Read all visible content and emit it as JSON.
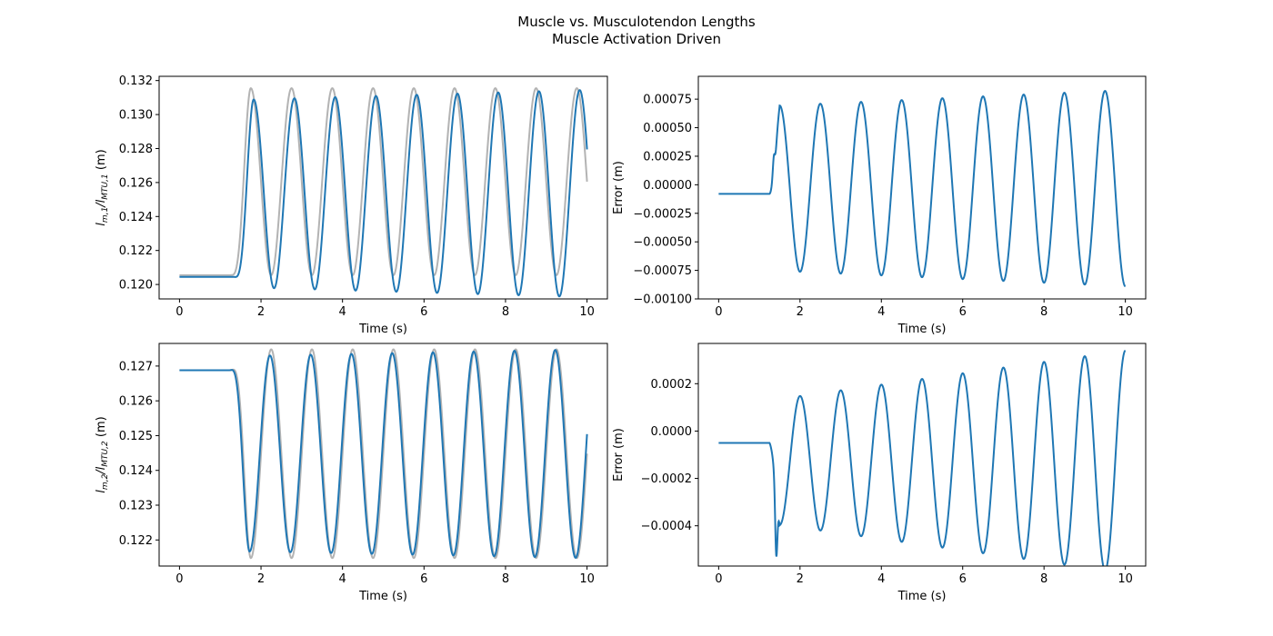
{
  "figure": {
    "title_line1": "Muscle vs. Musculotendon Lengths",
    "title_line2": "Muscle Activation Driven"
  },
  "chart_data": [
    {
      "id": "lengths_1",
      "type": "line",
      "xlabel": "Time (s)",
      "ylabel_parts": [
        "l",
        "m,1",
        "/l",
        "MTU,1",
        " (m)"
      ],
      "xlim": [
        -0.5,
        10.5
      ],
      "ylim": [
        0.11915,
        0.13225
      ],
      "xticks": [
        0,
        2,
        4,
        6,
        8,
        10
      ],
      "xtick_labels": [
        "0",
        "2",
        "4",
        "6",
        "8",
        "10"
      ],
      "yticks": [
        0.12,
        0.122,
        0.124,
        0.126,
        0.128,
        0.13,
        0.132
      ],
      "ytick_labels": [
        "0.120",
        "0.122",
        "0.124",
        "0.126",
        "0.128",
        "0.130",
        "0.132"
      ],
      "series": [
        {
          "color": "#b3b3b3",
          "model": "sine_start",
          "t0": 1.25,
          "base": 0.12055,
          "center": 0.12605,
          "amp_start": 0.0055,
          "amp_end": 0.0055,
          "freq": 1.0,
          "phase": -1.5708,
          "t_end": 10.0
        },
        {
          "color": "#1f77b4",
          "model": "sine_start",
          "t0": 1.32,
          "base": 0.12045,
          "center": 0.12535,
          "amp_start": 0.0055,
          "amp_end": 0.0061,
          "freq": 1.0,
          "phase": -1.5708,
          "t_end": 10.0
        }
      ]
    },
    {
      "id": "error_1",
      "type": "line",
      "xlabel": "Time (s)",
      "ylabel": "Error (m)",
      "xlim": [
        -0.5,
        10.5
      ],
      "ylim": [
        -0.001,
        0.00095
      ],
      "xticks": [
        0,
        2,
        4,
        6,
        8,
        10
      ],
      "xtick_labels": [
        "0",
        "2",
        "4",
        "6",
        "8",
        "10"
      ],
      "yticks": [
        -0.001,
        -0.00075,
        -0.0005,
        -0.00025,
        0.0,
        0.00025,
        0.0005,
        0.00075
      ],
      "ytick_labels": [
        "−0.00100",
        "−0.00075",
        "−0.00050",
        "−0.00025",
        "0.00000",
        "0.00025",
        "0.00050",
        "0.00075"
      ],
      "series": [
        {
          "color": "#1f77b4",
          "model": "error",
          "t0": 1.25,
          "start": 0.0,
          "flat": -8e-05,
          "center": -3e-05,
          "amp_start": 0.00072,
          "amp_end": 0.00086,
          "freq": 1.0,
          "phase": 0.0,
          "spike": [
            1.37,
            0.00027
          ],
          "t_end": 10.0
        }
      ]
    },
    {
      "id": "lengths_2",
      "type": "line",
      "xlabel": "Time (s)",
      "ylabel_parts": [
        "l",
        "m,2",
        "/l",
        "MTU,2",
        " (m)"
      ],
      "xlim": [
        -0.5,
        10.5
      ],
      "ylim": [
        0.12125,
        0.12765
      ],
      "xticks": [
        0,
        2,
        4,
        6,
        8,
        10
      ],
      "xtick_labels": [
        "0",
        "2",
        "4",
        "6",
        "8",
        "10"
      ],
      "yticks": [
        0.122,
        0.123,
        0.124,
        0.125,
        0.126,
        0.127
      ],
      "ytick_labels": [
        "0.122",
        "0.123",
        "0.124",
        "0.125",
        "0.126",
        "0.127"
      ],
      "series": [
        {
          "color": "#b3b3b3",
          "model": "sine_start",
          "t0": 1.25,
          "base": 0.12688,
          "center": 0.12448,
          "amp_start": 0.003,
          "amp_end": 0.003,
          "freq": 1.0,
          "phase": 1.5708,
          "t_end": 10.0
        },
        {
          "color": "#1f77b4",
          "model": "sine_start",
          "t0": 1.22,
          "base": 0.12688,
          "center": 0.12448,
          "amp_start": 0.0028,
          "amp_end": 0.003,
          "freq": 1.0,
          "phase": 1.5708,
          "t_end": 10.0
        }
      ]
    },
    {
      "id": "error_2",
      "type": "line",
      "xlabel": "Time (s)",
      "ylabel": "Error (m)",
      "xlim": [
        -0.5,
        10.5
      ],
      "ylim": [
        -0.00057,
        0.00037
      ],
      "xticks": [
        0,
        2,
        4,
        6,
        8,
        10
      ],
      "xtick_labels": [
        "0",
        "2",
        "4",
        "6",
        "8",
        "10"
      ],
      "yticks": [
        -0.0004,
        -0.0002,
        0.0,
        0.0002
      ],
      "ytick_labels": [
        "−0.0004",
        "−0.0002",
        "0.0000",
        "0.0002"
      ],
      "series": [
        {
          "color": "#1f77b4",
          "model": "error",
          "t0": 1.25,
          "start": 0.0,
          "flat": -5e-05,
          "center": -0.00013,
          "amp_start": 0.00026,
          "amp_end": 0.00047,
          "freq": 1.0,
          "phase": 3.1416,
          "spike": [
            1.42,
            -0.00053
          ],
          "t_end": 10.0
        }
      ]
    }
  ]
}
